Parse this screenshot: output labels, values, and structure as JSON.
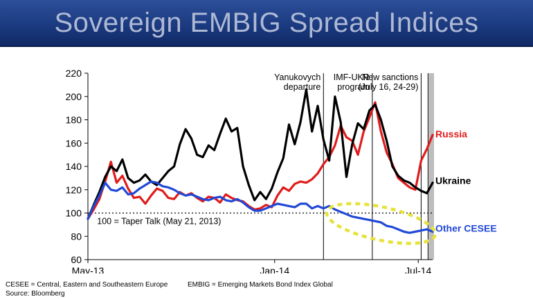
{
  "header": {
    "title": "Sovereign EMBIG Spread Indices"
  },
  "footer": {
    "definition_cesee": "CESEE = Central, Eastern and Southeastern Europe",
    "definition_embig": "EMBIG = Emerging Markets Bond Index Global",
    "source": "Source: Bloomberg"
  },
  "colors": {
    "ukraine": "#000000",
    "russia": "#e01b1b",
    "other_cesee": "#1f48d6",
    "ellipse": "#e6e23a",
    "banner": "#1b3a80"
  },
  "chart_data": {
    "type": "line",
    "title": "Sovereign EMBIG Spread Indices",
    "ylim": [
      60,
      220
    ],
    "yticks": [
      60,
      80,
      100,
      120,
      140,
      160,
      180,
      200,
      220
    ],
    "xlim": [
      0,
      60
    ],
    "xticks": [
      {
        "x": 0,
        "label": "May-13"
      },
      {
        "x": 32.5,
        "label": "Jan-14"
      },
      {
        "x": 57.5,
        "label": "Jul-14"
      }
    ],
    "baseline": {
      "y": 100,
      "label": "100 = Taper Talk (May 21, 2013)"
    },
    "events": [
      {
        "x": 41,
        "label_lines": [
          "Yanukovych",
          "departure"
        ]
      },
      {
        "x": 49.5,
        "label_lines": [
          "IMF-UKR",
          "program"
        ]
      },
      {
        "x": 58,
        "label_lines": [
          "New sanctions",
          "(July 16, 24-29)"
        ]
      },
      {
        "x": 59.2,
        "label_lines": []
      }
    ],
    "series": [
      {
        "name": "Ukraine",
        "color": "#000000",
        "x": [
          0,
          1,
          2,
          3,
          4,
          5,
          6,
          7,
          8,
          9,
          10,
          11,
          12,
          13,
          14,
          15,
          16,
          17,
          18,
          19,
          20,
          21,
          22,
          23,
          24,
          25,
          26,
          27,
          28,
          29,
          30,
          31,
          32,
          33,
          34,
          35,
          36,
          37,
          38,
          39,
          40,
          41,
          42,
          43,
          44,
          45,
          46,
          47,
          48,
          49,
          50,
          51,
          52,
          53,
          54,
          55,
          56,
          57,
          58,
          59,
          60
        ],
        "values": [
          95,
          107,
          118,
          131,
          140,
          136,
          146,
          130,
          126,
          128,
          133,
          127,
          124,
          130,
          136,
          140,
          159,
          172,
          164,
          150,
          148,
          158,
          154,
          168,
          181,
          170,
          173,
          140,
          124,
          111,
          118,
          112,
          121,
          135,
          147,
          176,
          159,
          178,
          206,
          170,
          192,
          163,
          145,
          200,
          178,
          131,
          159,
          177,
          172,
          188,
          193,
          180,
          162,
          140,
          132,
          128,
          126,
          122,
          119,
          117,
          126
        ]
      },
      {
        "name": "Russia",
        "color": "#e01b1b",
        "x": [
          0,
          1,
          2,
          3,
          4,
          5,
          6,
          7,
          8,
          9,
          10,
          11,
          12,
          13,
          14,
          15,
          16,
          17,
          18,
          19,
          20,
          21,
          22,
          23,
          24,
          25,
          26,
          27,
          28,
          29,
          30,
          31,
          32,
          33,
          34,
          35,
          36,
          37,
          38,
          39,
          40,
          41,
          42,
          43,
          44,
          45,
          46,
          47,
          48,
          49,
          50,
          51,
          52,
          53,
          54,
          55,
          56,
          57,
          58,
          59,
          60
        ],
        "values": [
          95,
          103,
          112,
          127,
          144,
          126,
          132,
          121,
          113,
          114,
          108,
          115,
          121,
          119,
          113,
          112,
          118,
          115,
          117,
          113,
          110,
          114,
          113,
          109,
          116,
          113,
          111,
          110,
          106,
          103,
          104,
          107,
          105,
          115,
          122,
          119,
          125,
          127,
          126,
          129,
          134,
          142,
          148,
          158,
          175,
          165,
          162,
          150,
          170,
          182,
          195,
          170,
          152,
          142,
          130,
          126,
          122,
          120,
          145,
          155,
          167
        ]
      },
      {
        "name": "Other CESEE",
        "color": "#1f48d6",
        "x": [
          0,
          1,
          2,
          3,
          4,
          5,
          6,
          7,
          8,
          9,
          10,
          11,
          12,
          13,
          14,
          15,
          16,
          17,
          18,
          19,
          20,
          21,
          22,
          23,
          24,
          25,
          26,
          27,
          28,
          29,
          30,
          31,
          32,
          33,
          34,
          35,
          36,
          37,
          38,
          39,
          40,
          41,
          42,
          43,
          44,
          45,
          46,
          47,
          48,
          49,
          50,
          51,
          52,
          53,
          54,
          55,
          56,
          57,
          58,
          59,
          60
        ],
        "values": [
          95,
          106,
          115,
          126,
          120,
          119,
          122,
          116,
          117,
          121,
          124,
          127,
          126,
          123,
          122,
          120,
          117,
          115,
          116,
          114,
          112,
          111,
          113,
          114,
          111,
          110,
          112,
          109,
          105,
          102,
          102,
          104,
          106,
          108,
          107,
          106,
          105,
          108,
          108,
          104,
          106,
          104,
          106,
          103,
          101,
          99,
          97,
          96,
          95,
          94,
          93,
          92,
          89,
          88,
          86,
          84,
          83,
          84,
          85,
          86,
          84
        ]
      }
    ],
    "series_labels": [
      {
        "name": "Russia",
        "text": "Russia",
        "y": 168
      },
      {
        "name": "Ukraine",
        "text": "Ukraine",
        "y": 128
      },
      {
        "name": "Other CESEE",
        "text": "Other CESEE",
        "y": 87
      }
    ]
  }
}
